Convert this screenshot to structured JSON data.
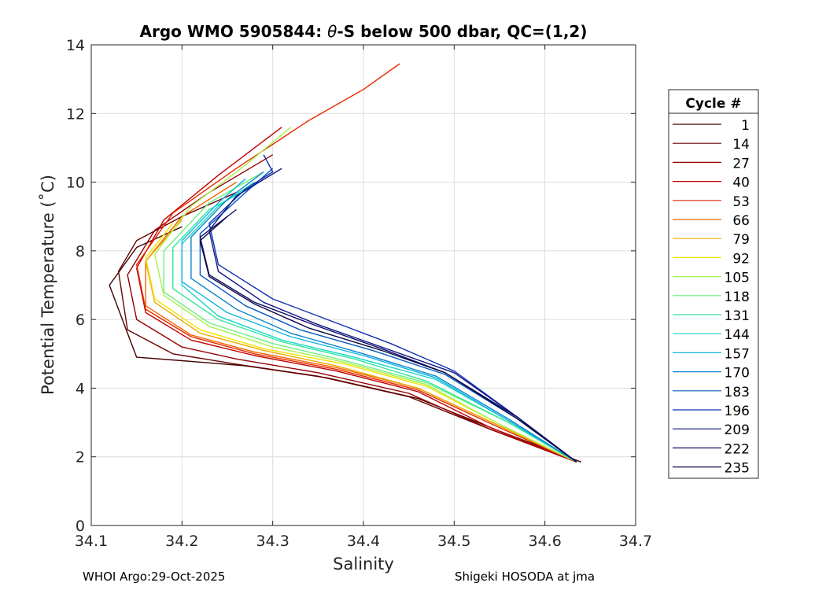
{
  "chart_data": {
    "type": "line",
    "title_prefix": "Argo WMO 5905844: ",
    "title_symbol": "θ",
    "title_suffix": "-S below 500 dbar,  QC=(1,2)",
    "xlabel": "Salinity",
    "ylabel": "Potential Temperature (˚C)",
    "xlim": [
      34.1,
      34.7
    ],
    "ylim": [
      0,
      14
    ],
    "xticks": [
      "34.1",
      "34.2",
      "34.3",
      "34.4",
      "34.5",
      "34.6",
      "34.7"
    ],
    "yticks": [
      "0",
      "2",
      "4",
      "6",
      "8",
      "10",
      "12",
      "14"
    ],
    "grid": true,
    "legend": {
      "title": "Cycle #",
      "position": "right",
      "entries": [
        "1",
        "14",
        "27",
        "40",
        "53",
        "66",
        "79",
        "92",
        "105",
        "118",
        "131",
        "144",
        "157",
        "170",
        "183",
        "196",
        "209",
        "222",
        "235"
      ],
      "colors": [
        "#400000",
        "#6a0000",
        "#950000",
        "#c00000",
        "#e82a00",
        "#f26300",
        "#f0a800",
        "#f2e400",
        "#a8f24f",
        "#6cf07c",
        "#2ee89a",
        "#18d4c8",
        "#10b4e0",
        "#0a84cc",
        "#0a58c0",
        "#1030b0",
        "#101888",
        "#100c66",
        "#0a0a44"
      ]
    },
    "series": [
      {
        "name": "1",
        "color": "#400000",
        "s": [
          34.64,
          34.55,
          34.46,
          34.36,
          34.27,
          34.2,
          34.15,
          34.14,
          34.12,
          34.15,
          34.2
        ],
        "t": [
          1.85,
          2.75,
          3.7,
          4.3,
          4.65,
          4.8,
          4.9,
          5.6,
          7.0,
          8.1,
          8.7
        ]
      },
      {
        "name": "14",
        "color": "#6a0000",
        "s": [
          34.635,
          34.54,
          34.45,
          34.35,
          34.26,
          34.19,
          34.14,
          34.13,
          34.15,
          34.2,
          34.26
        ],
        "t": [
          1.85,
          2.8,
          3.75,
          4.35,
          4.7,
          5.0,
          5.7,
          7.4,
          8.3,
          9.0,
          9.7
        ]
      },
      {
        "name": "27",
        "color": "#950000",
        "s": [
          34.635,
          34.54,
          34.45,
          34.35,
          34.26,
          34.2,
          34.15,
          34.14,
          34.17,
          34.23,
          34.3
        ],
        "t": [
          1.85,
          2.8,
          3.85,
          4.45,
          4.85,
          5.2,
          6.0,
          7.3,
          8.6,
          9.7,
          10.8
        ]
      },
      {
        "name": "40",
        "color": "#c00000",
        "s": [
          34.635,
          34.54,
          34.46,
          34.37,
          34.28,
          34.21,
          34.16,
          34.15,
          34.18,
          34.24,
          34.31
        ],
        "t": [
          1.85,
          2.85,
          3.9,
          4.5,
          4.95,
          5.4,
          6.2,
          7.5,
          8.9,
          10.2,
          11.6
        ]
      },
      {
        "name": "53",
        "color": "#e82a00",
        "s": [
          34.635,
          34.55,
          34.46,
          34.37,
          34.28,
          34.21,
          34.16,
          34.15,
          34.19,
          34.26,
          34.34,
          34.4,
          34.44
        ],
        "t": [
          1.85,
          2.85,
          3.95,
          4.55,
          5.0,
          5.5,
          6.3,
          7.6,
          9.1,
          10.4,
          11.8,
          12.7,
          13.45
        ]
      },
      {
        "name": "66",
        "color": "#f26300",
        "s": [
          34.635,
          34.55,
          34.46,
          34.37,
          34.28,
          34.21,
          34.16,
          34.16,
          34.2,
          34.26
        ],
        "t": [
          1.85,
          2.9,
          4.0,
          4.6,
          5.05,
          5.55,
          6.4,
          7.7,
          9.0,
          10.0
        ]
      },
      {
        "name": "79",
        "color": "#f0a800",
        "s": [
          34.635,
          34.55,
          34.46,
          34.37,
          34.29,
          34.22,
          34.17,
          34.16,
          34.2
        ],
        "t": [
          1.85,
          2.9,
          4.0,
          4.65,
          5.1,
          5.6,
          6.5,
          7.7,
          8.9
        ]
      },
      {
        "name": "92",
        "color": "#f2e400",
        "s": [
          34.635,
          34.55,
          34.47,
          34.38,
          34.29,
          34.22,
          34.17,
          34.16,
          34.19
        ],
        "t": [
          1.85,
          2.95,
          4.05,
          4.7,
          5.15,
          5.7,
          6.6,
          7.8,
          8.8
        ]
      },
      {
        "name": "105",
        "color": "#a8f24f",
        "s": [
          34.635,
          34.55,
          34.47,
          34.38,
          34.3,
          34.23,
          34.18,
          34.17,
          34.21,
          34.27,
          34.32
        ],
        "t": [
          1.85,
          2.95,
          4.1,
          4.75,
          5.2,
          5.8,
          6.7,
          7.9,
          9.3,
          10.5,
          11.6
        ]
      },
      {
        "name": "118",
        "color": "#6cf07c",
        "s": [
          34.635,
          34.56,
          34.47,
          34.38,
          34.3,
          34.23,
          34.18,
          34.18,
          34.23,
          34.29
        ],
        "t": [
          1.85,
          3.0,
          4.15,
          4.8,
          5.3,
          5.9,
          6.8,
          8.0,
          9.4,
          10.3
        ]
      },
      {
        "name": "131",
        "color": "#2ee89a",
        "s": [
          34.635,
          34.56,
          34.47,
          34.39,
          34.31,
          34.24,
          34.19,
          34.19,
          34.23,
          34.28
        ],
        "t": [
          1.85,
          3.0,
          4.2,
          4.85,
          5.35,
          6.0,
          6.9,
          8.1,
          9.2,
          9.9
        ]
      },
      {
        "name": "144",
        "color": "#18d4c8",
        "s": [
          34.635,
          34.56,
          34.48,
          34.39,
          34.31,
          34.24,
          34.2,
          34.2,
          34.24,
          34.28
        ],
        "t": [
          1.85,
          3.05,
          4.25,
          4.9,
          5.4,
          6.1,
          7.0,
          8.2,
          9.3,
          10.0
        ]
      },
      {
        "name": "157",
        "color": "#10b4e0",
        "s": [
          34.635,
          34.56,
          34.48,
          34.4,
          34.32,
          34.25,
          34.2,
          34.2,
          34.24,
          34.27
        ],
        "t": [
          1.85,
          3.05,
          4.3,
          4.95,
          5.5,
          6.2,
          7.1,
          8.3,
          9.4,
          10.1
        ]
      },
      {
        "name": "170",
        "color": "#0a84cc",
        "s": [
          34.635,
          34.56,
          34.48,
          34.4,
          34.32,
          34.26,
          34.21,
          34.21,
          34.25,
          34.29
        ],
        "t": [
          1.85,
          3.1,
          4.35,
          5.0,
          5.6,
          6.3,
          7.2,
          8.4,
          9.5,
          10.3
        ]
      },
      {
        "name": "183",
        "color": "#0a58c0",
        "s": [
          34.635,
          34.57,
          34.49,
          34.41,
          34.33,
          34.27,
          34.22,
          34.22,
          34.27,
          34.3
        ],
        "t": [
          1.85,
          3.1,
          4.4,
          5.1,
          5.7,
          6.4,
          7.3,
          8.5,
          9.7,
          10.4
        ]
      },
      {
        "name": "196",
        "color": "#1030b0",
        "s": [
          34.635,
          34.57,
          34.5,
          34.43,
          34.36,
          34.3,
          34.24,
          34.23,
          34.27,
          34.3,
          34.29
        ],
        "t": [
          1.85,
          3.15,
          4.5,
          5.3,
          6.0,
          6.6,
          7.6,
          8.8,
          9.8,
          10.3,
          10.8
        ]
      },
      {
        "name": "209",
        "color": "#101888",
        "s": [
          34.635,
          34.57,
          34.5,
          34.42,
          34.35,
          34.29,
          34.24,
          34.23,
          34.26,
          34.31
        ],
        "t": [
          1.85,
          3.15,
          4.45,
          5.2,
          5.85,
          6.5,
          7.4,
          8.6,
          9.6,
          10.4
        ]
      },
      {
        "name": "222",
        "color": "#100c66",
        "s": [
          34.635,
          34.57,
          34.49,
          34.42,
          34.35,
          34.28,
          34.23,
          34.22,
          34.26
        ],
        "t": [
          1.85,
          3.15,
          4.45,
          5.15,
          5.8,
          6.5,
          7.3,
          8.4,
          9.2
        ]
      },
      {
        "name": "235",
        "color": "#0a0a44",
        "s": [
          34.635,
          34.57,
          34.49,
          34.42,
          34.34,
          34.28,
          34.23,
          34.22,
          34.25
        ],
        "t": [
          1.85,
          3.1,
          4.45,
          5.1,
          5.75,
          6.45,
          7.25,
          8.3,
          9.0
        ]
      }
    ]
  },
  "footer": {
    "left": "WHOI Argo:29-Oct-2025",
    "right": "Shigeki HOSODA at jma"
  }
}
